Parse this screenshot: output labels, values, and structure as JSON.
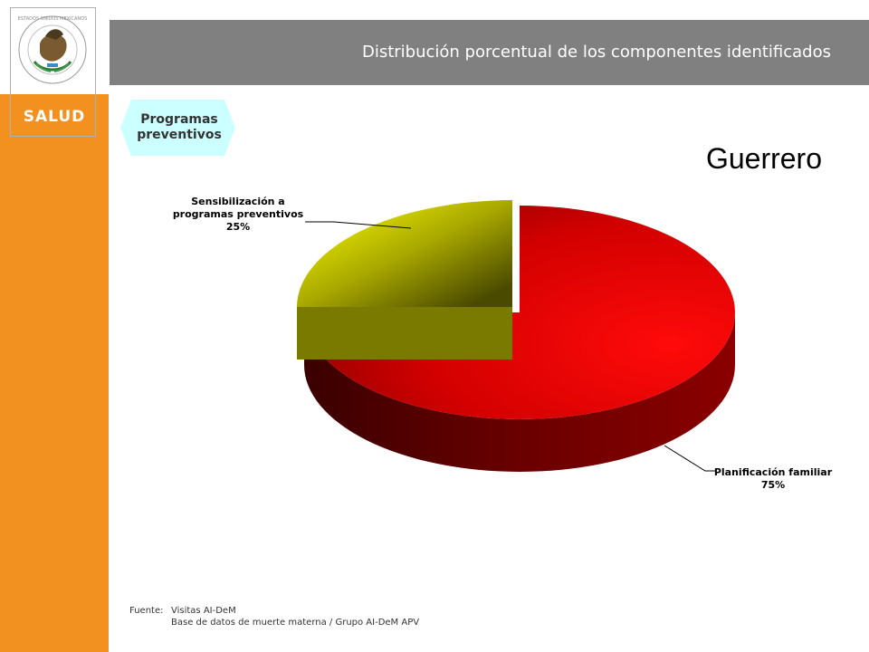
{
  "header": {
    "title": "Distribución porcentual de los componentes identificados"
  },
  "sidebar": {
    "brand": "SALUD",
    "seal_text": "ESTADOS UNIDOS MEXICANOS"
  },
  "tag": {
    "line1": "Programas",
    "line2": "preventivos"
  },
  "region": "Guerrero",
  "footer": {
    "label": "Fuente:",
    "line1": "Visitas AI-DeM",
    "line2": "Base de datos de muerte materna / Grupo AI-DeM APV"
  },
  "colors": {
    "orange": "#f39120",
    "header_gray": "#808080",
    "tag_cyan": "#ccffff",
    "red": "#e00000",
    "yellow": "#e6e600"
  },
  "chart_data": {
    "type": "pie",
    "title": "",
    "slices": [
      {
        "label_lines": [
          "Sensibilización a",
          "programas preventivos",
          "25%"
        ],
        "value": 25,
        "color": "#d8d800",
        "exploded": true
      },
      {
        "label_lines": [
          "Planificación familiar",
          "75%"
        ],
        "value": 75,
        "color": "#e00000",
        "exploded": false
      }
    ]
  }
}
